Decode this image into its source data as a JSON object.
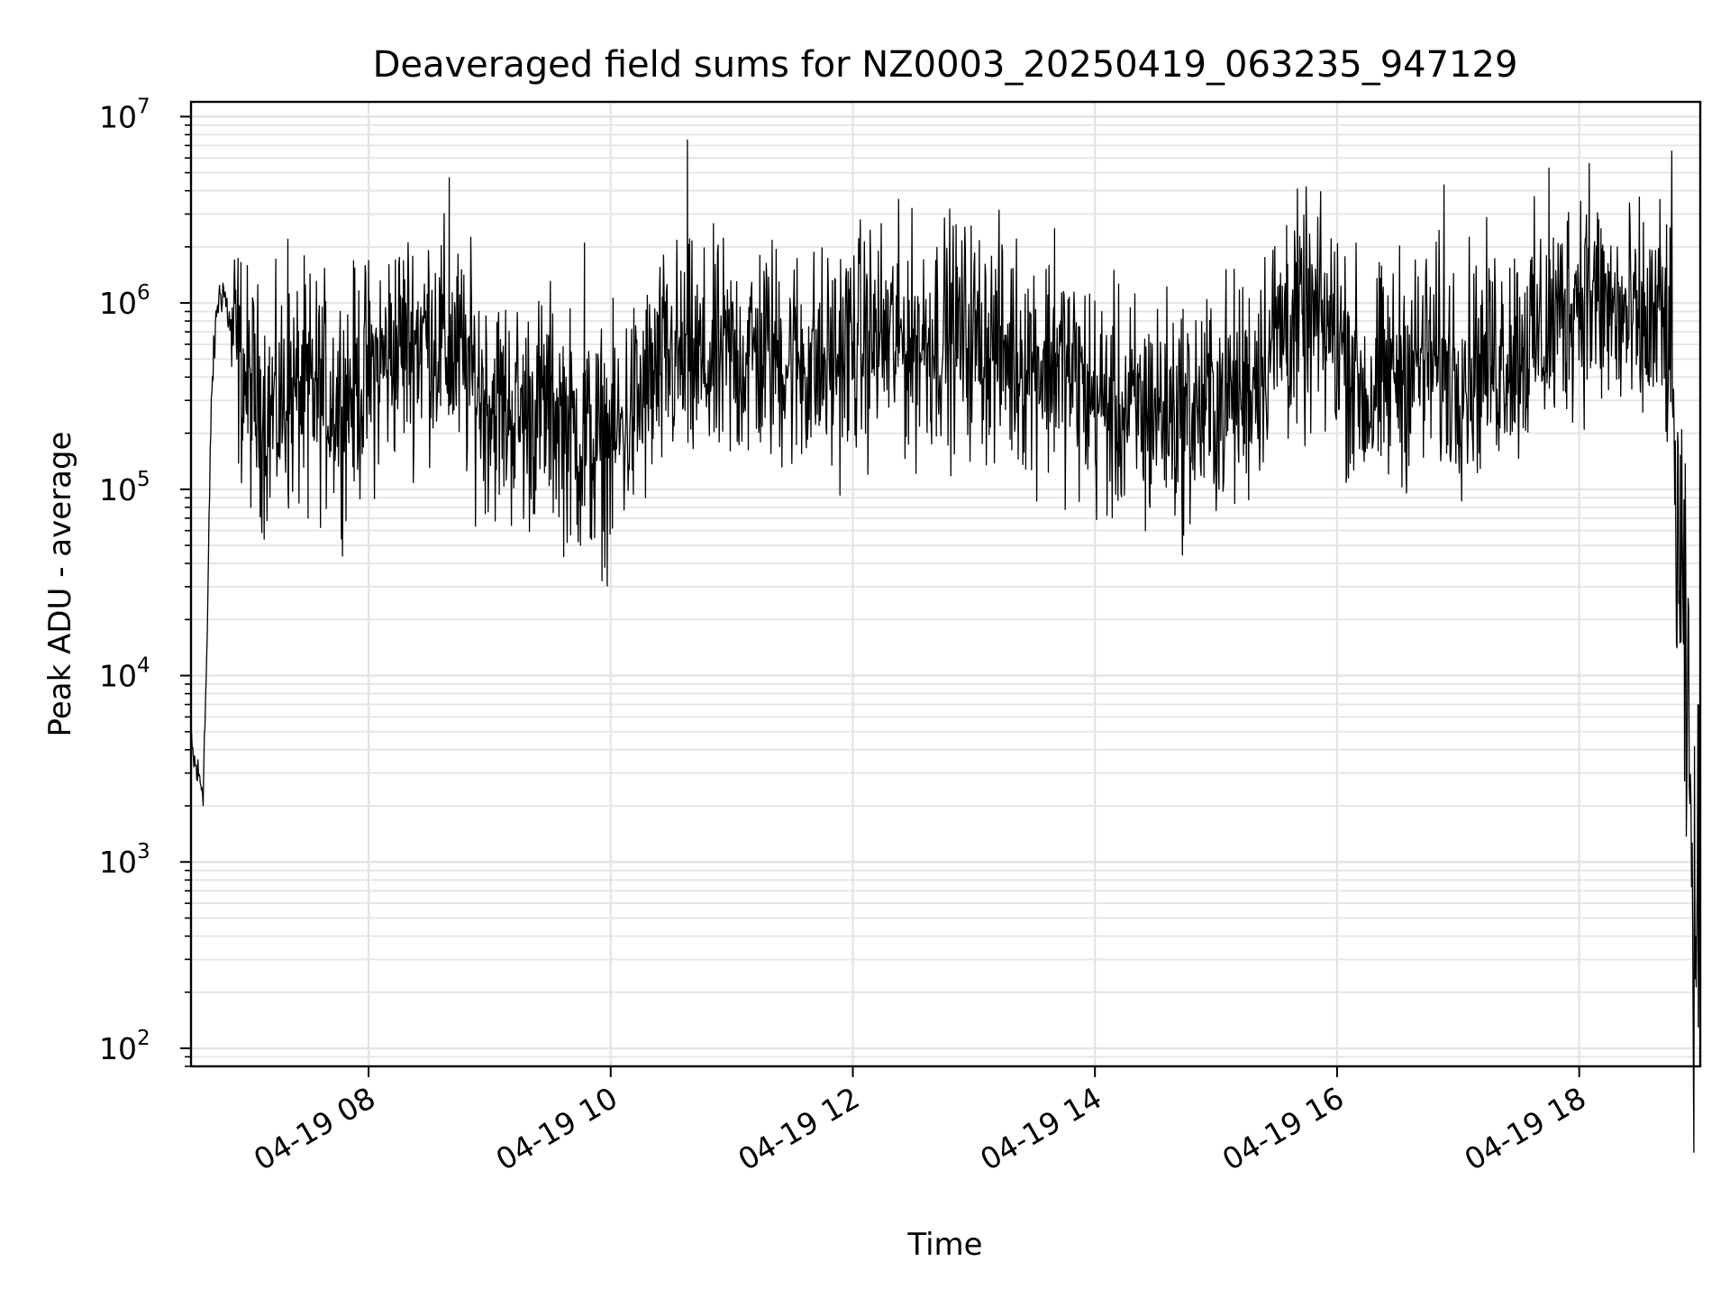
{
  "chart_data": {
    "type": "line",
    "title": "Deaveraged field sums for NZ0003_20250419_063235_947129",
    "xlabel": "Time",
    "ylabel": "Peak ADU - average",
    "yscale": "log",
    "ylim": [
      80,
      12000000
    ],
    "xlim": [
      "04-19 06:32",
      "04-19 19:00"
    ],
    "grid": true,
    "legend": "none",
    "x_ticks": [
      "04-19 08",
      "04-19 10",
      "04-19 12",
      "04-19 14",
      "04-19 16",
      "04-19 18"
    ],
    "y_ticks": [
      {
        "base": "10",
        "exp": "2",
        "value": 100
      },
      {
        "base": "10",
        "exp": "3",
        "value": 1000
      },
      {
        "base": "10",
        "exp": "4",
        "value": 10000
      },
      {
        "base": "10",
        "exp": "5",
        "value": 100000
      },
      {
        "base": "10",
        "exp": "6",
        "value": 1000000
      },
      {
        "base": "10",
        "exp": "7",
        "value": 10000000
      }
    ],
    "series": [
      {
        "color": "#000000",
        "x": [
          "04-19 06:32",
          "04-19 06:35",
          "04-19 06:38",
          "04-19 06:40",
          "04-19 06:42",
          "04-19 06:45",
          "04-19 06:48",
          "04-19 06:52",
          "04-19 07:00",
          "04-19 07:10",
          "04-19 07:20",
          "04-19 07:30",
          "04-19 07:45",
          "04-19 08:00",
          "04-19 08:15",
          "04-19 08:30",
          "04-19 08:45",
          "04-19 09:00",
          "04-19 09:15",
          "04-19 09:30",
          "04-19 09:45",
          "04-19 10:00",
          "04-19 10:15",
          "04-19 10:30",
          "04-19 10:45",
          "04-19 11:00",
          "04-19 11:15",
          "04-19 11:30",
          "04-19 11:45",
          "04-19 12:00",
          "04-19 12:15",
          "04-19 12:30",
          "04-19 12:45",
          "04-19 13:00",
          "04-19 13:15",
          "04-19 13:30",
          "04-19 13:45",
          "04-19 14:00",
          "04-19 14:15",
          "04-19 14:30",
          "04-19 14:45",
          "04-19 15:00",
          "04-19 15:15",
          "04-19 15:30",
          "04-19 15:45",
          "04-19 16:00",
          "04-19 16:15",
          "04-19 16:30",
          "04-19 16:45",
          "04-19 17:00",
          "04-19 17:15",
          "04-19 17:30",
          "04-19 17:45",
          "04-19 18:00",
          "04-19 18:15",
          "04-19 18:30",
          "04-19 18:40",
          "04-19 18:45",
          "04-19 18:48",
          "04-19 18:51",
          "04-19 18:54",
          "04-19 18:57",
          "04-19 19:00"
        ],
        "y": [
          4000,
          3000,
          2500,
          15000,
          300000,
          1000000,
          1200000,
          700000,
          350000,
          250000,
          300000,
          350000,
          300000,
          400000,
          600000,
          700000,
          500000,
          300000,
          250000,
          280000,
          180000,
          170000,
          300000,
          500000,
          450000,
          500000,
          550000,
          500000,
          450000,
          600000,
          650000,
          600000,
          700000,
          650000,
          550000,
          500000,
          450000,
          300000,
          250000,
          280000,
          250000,
          300000,
          350000,
          700000,
          800000,
          700000,
          300000,
          450000,
          500000,
          450000,
          500000,
          600000,
          700000,
          1200000,
          900000,
          700000,
          800000,
          600000,
          80000,
          20000,
          5000,
          300,
          1000
        ],
        "noise_dex": 0.3,
        "peaks": [
          {
            "x": "04-19 07:20",
            "y": 2200000
          },
          {
            "x": "04-19 08:40",
            "y": 4700000
          },
          {
            "x": "04-19 09:47",
            "y": 2100000
          },
          {
            "x": "04-19 10:38",
            "y": 7500000
          },
          {
            "x": "04-19 13:40",
            "y": 2500000
          },
          {
            "x": "04-19 15:35",
            "y": 2600000
          },
          {
            "x": "04-19 16:53",
            "y": 4300000
          },
          {
            "x": "04-19 17:45",
            "y": 5300000
          },
          {
            "x": "04-19 18:05",
            "y": 5600000
          },
          {
            "x": "04-19 18:40",
            "y": 3600000
          }
        ],
        "troughs": [
          {
            "x": "04-19 07:30",
            "y": 70000
          },
          {
            "x": "04-19 09:45",
            "y": 50000
          },
          {
            "x": "04-19 09:52",
            "y": 55000
          },
          {
            "x": "04-19 14:25",
            "y": 60000
          },
          {
            "x": "04-19 18:59",
            "y": 130
          }
        ]
      }
    ]
  }
}
